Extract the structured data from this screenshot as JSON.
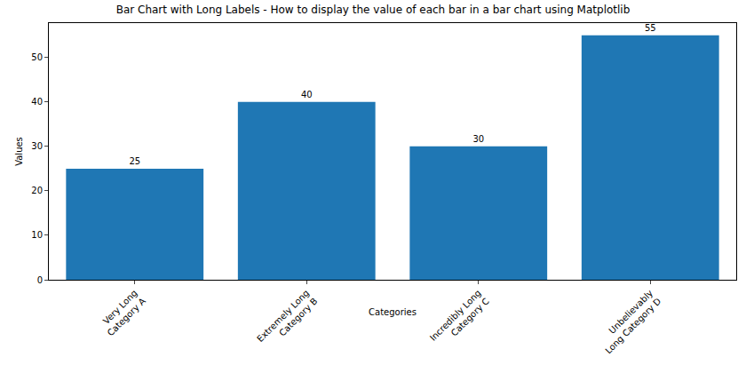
{
  "chart_data": {
    "type": "bar",
    "title": "Bar Chart with Long Labels - How to display the value of each bar in a bar chart using Matplotlib",
    "x_label": "Categories",
    "y_label": "Values",
    "categories": [
      "Very Long\nCategory A",
      "Extremely Long\nCategory B",
      "Incredibly Long\nCategory C",
      "Unbelievably\nLong Category D"
    ],
    "values": [
      25,
      40,
      30,
      55
    ],
    "color": "#1f77b4",
    "ylim": [
      0,
      57.75
    ],
    "yticks": [
      0,
      10,
      20,
      30,
      40,
      50
    ],
    "grid": false,
    "data_labels": true
  }
}
